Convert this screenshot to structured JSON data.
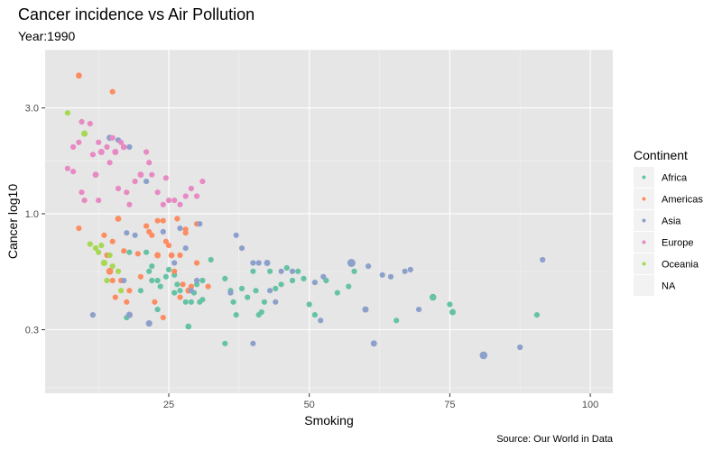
{
  "chart_data": {
    "type": "scatter",
    "title": "Cancer incidence vs Air Pollution",
    "subtitle": "Year:1990",
    "xlabel": "Smoking",
    "ylabel": "Cancer log10",
    "caption": "Source: Our World in Data",
    "x_scale": "linear",
    "y_scale": "log10",
    "xlim": [
      3,
      104
    ],
    "ylim": [
      0.155,
      5.5
    ],
    "x_ticks": [
      25,
      50,
      75,
      100
    ],
    "x_tick_labels": [
      "25",
      "50",
      "75",
      "100"
    ],
    "y_ticks": [
      0.3,
      1.0,
      3.0
    ],
    "y_tick_labels": [
      "0.3",
      "1.0",
      "3.0"
    ],
    "grid": true,
    "legend_title": "Continent",
    "legend_position": "right",
    "size_encoded": true,
    "series": [
      {
        "name": "Africa",
        "color": "#66c2a5",
        "points": [
          [
            18,
            0.67,
            1
          ],
          [
            21,
            0.67,
            1
          ],
          [
            22,
            0.5,
            1
          ],
          [
            23,
            0.5,
            1
          ],
          [
            23.5,
            0.47,
            1
          ],
          [
            24.5,
            0.52,
            1
          ],
          [
            25,
            0.56,
            1
          ],
          [
            26,
            0.53,
            1
          ],
          [
            26.5,
            0.48,
            1
          ],
          [
            27,
            0.45,
            1
          ],
          [
            28,
            0.4,
            1
          ],
          [
            29,
            0.4,
            1
          ],
          [
            30,
            0.48,
            1
          ],
          [
            30.5,
            0.4,
            1
          ],
          [
            31,
            0.5,
            1
          ],
          [
            32.5,
            0.62,
            1
          ],
          [
            35,
            0.51,
            1
          ],
          [
            36,
            0.45,
            1
          ],
          [
            36.5,
            0.4,
            1
          ],
          [
            37,
            0.35,
            1
          ],
          [
            38,
            0.46,
            1
          ],
          [
            39,
            0.42,
            1
          ],
          [
            40,
            0.55,
            1
          ],
          [
            40.5,
            0.45,
            1
          ],
          [
            41,
            0.35,
            1
          ],
          [
            41.5,
            0.36,
            1
          ],
          [
            42,
            0.4,
            1
          ],
          [
            43,
            0.55,
            1
          ],
          [
            44,
            0.46,
            1
          ],
          [
            45,
            0.48,
            1
          ],
          [
            46,
            0.57,
            1
          ],
          [
            47,
            0.5,
            1
          ],
          [
            48,
            0.55,
            1
          ],
          [
            49,
            0.51,
            1
          ],
          [
            50,
            0.39,
            1
          ],
          [
            51,
            0.35,
            1
          ],
          [
            53,
            0.5,
            1
          ],
          [
            55,
            0.44,
            1
          ],
          [
            57,
            0.47,
            1
          ],
          [
            58,
            0.55,
            1
          ],
          [
            65.5,
            0.33,
            1
          ],
          [
            72,
            0.42,
            1.5
          ],
          [
            75,
            0.39,
            1
          ],
          [
            75.5,
            0.36,
            1.3
          ],
          [
            90.5,
            0.35,
            1
          ],
          [
            17.5,
            0.34,
            1
          ],
          [
            20,
            0.45,
            1
          ],
          [
            23,
            0.37,
            1
          ],
          [
            28.5,
            0.31,
            1.2
          ],
          [
            35,
            0.26,
            1
          ],
          [
            22,
            0.58,
            1
          ],
          [
            21.5,
            0.55,
            1
          ],
          [
            26,
            0.44,
            1
          ],
          [
            29.5,
            0.44,
            1
          ],
          [
            31,
            0.41,
            1
          ]
        ]
      },
      {
        "name": "Americas",
        "color": "#fc8d62",
        "points": [
          [
            9,
            4.2,
            1.2
          ],
          [
            15,
            3.55,
            1
          ],
          [
            9,
            0.86,
            1
          ],
          [
            16,
            0.95,
            1.2
          ],
          [
            17,
            0.68,
            1
          ],
          [
            13.5,
            0.8,
            1
          ],
          [
            14,
            0.65,
            1
          ],
          [
            15,
            0.75,
            1
          ],
          [
            14.5,
            0.55,
            1.6
          ],
          [
            15,
            0.5,
            1
          ],
          [
            15.5,
            0.42,
            1
          ],
          [
            16.5,
            0.5,
            1
          ],
          [
            17.5,
            0.4,
            1
          ],
          [
            18,
            0.45,
            1
          ],
          [
            19.5,
            0.66,
            1
          ],
          [
            20,
            0.52,
            1
          ],
          [
            21,
            0.88,
            1
          ],
          [
            22,
            0.8,
            1
          ],
          [
            23,
            0.93,
            1
          ],
          [
            24,
            0.93,
            1
          ],
          [
            24.5,
            0.75,
            1
          ],
          [
            25,
            0.72,
            1
          ],
          [
            25.5,
            0.65,
            1.2
          ],
          [
            26,
            0.55,
            1
          ],
          [
            27,
            0.65,
            1
          ],
          [
            27.5,
            0.48,
            1
          ],
          [
            28,
            0.82,
            1
          ],
          [
            28.5,
            0.45,
            1.2
          ],
          [
            29,
            0.47,
            1
          ],
          [
            30,
            0.6,
            1
          ],
          [
            32,
            0.47,
            1
          ],
          [
            27,
            0.42,
            1
          ],
          [
            21.5,
            0.83,
            1
          ],
          [
            22.5,
            0.4,
            1
          ],
          [
            24,
            0.34,
            1
          ],
          [
            28,
            0.85,
            1
          ],
          [
            30,
            0.9,
            1
          ],
          [
            23,
            0.65,
            1.3
          ],
          [
            26.5,
            0.95,
            1
          ]
        ]
      },
      {
        "name": "Asia",
        "color": "#8da0cb",
        "points": [
          [
            14.5,
            2.2,
            1.3
          ],
          [
            16,
            2.15,
            1
          ],
          [
            18,
            2.0,
            1
          ],
          [
            21,
            1.4,
            1
          ],
          [
            19,
            0.8,
            1
          ],
          [
            17.5,
            0.82,
            1
          ],
          [
            17,
            0.5,
            1
          ],
          [
            18,
            0.35,
            1.4
          ],
          [
            11.5,
            0.35,
            1
          ],
          [
            21.5,
            0.32,
            1.4
          ],
          [
            24,
            0.83,
            1
          ],
          [
            26,
            0.6,
            1
          ],
          [
            27,
            0.86,
            1
          ],
          [
            28,
            0.7,
            1
          ],
          [
            30.5,
            0.9,
            1
          ],
          [
            29,
            0.45,
            1
          ],
          [
            30,
            0.5,
            1
          ],
          [
            37,
            0.8,
            1
          ],
          [
            38,
            0.7,
            1
          ],
          [
            40,
            0.6,
            1
          ],
          [
            41,
            0.6,
            1
          ],
          [
            42.5,
            0.6,
            1.3
          ],
          [
            43,
            0.45,
            1
          ],
          [
            44,
            0.4,
            1
          ],
          [
            45,
            0.55,
            1
          ],
          [
            47,
            0.55,
            1
          ],
          [
            52,
            0.33,
            1
          ],
          [
            52.5,
            0.52,
            1
          ],
          [
            57.5,
            0.6,
            2.2
          ],
          [
            60,
            0.37,
            1.3
          ],
          [
            61.5,
            0.26,
            1.3
          ],
          [
            63,
            0.53,
            1
          ],
          [
            64.5,
            0.52,
            1
          ],
          [
            67,
            0.55,
            1
          ],
          [
            68,
            0.56,
            1
          ],
          [
            69.5,
            0.37,
            1
          ],
          [
            81,
            0.23,
            2
          ],
          [
            87.5,
            0.25,
            1
          ],
          [
            91.5,
            0.62,
            1
          ],
          [
            40,
            0.26,
            1
          ],
          [
            60.5,
            0.58,
            1
          ],
          [
            51,
            0.49,
            1
          ],
          [
            36,
            0.44,
            1
          ]
        ]
      },
      {
        "name": "Europe",
        "color": "#e78ac3",
        "points": [
          [
            7,
            1.6,
            1
          ],
          [
            8,
            2.0,
            1
          ],
          [
            9,
            2.1,
            1
          ],
          [
            9.5,
            2.6,
            1
          ],
          [
            9.5,
            1.25,
            1
          ],
          [
            10,
            1.15,
            1
          ],
          [
            11,
            2.55,
            1
          ],
          [
            11.5,
            1.85,
            1
          ],
          [
            12,
            1.5,
            1.2
          ],
          [
            12.5,
            1.15,
            1
          ],
          [
            13,
            1.9,
            1.3
          ],
          [
            14,
            2.0,
            1
          ],
          [
            15,
            2.2,
            1
          ],
          [
            15.5,
            1.9,
            1.3
          ],
          [
            16,
            1.3,
            1
          ],
          [
            16.5,
            2.1,
            1
          ],
          [
            17,
            2.0,
            1.2
          ],
          [
            17.5,
            1.25,
            1
          ],
          [
            18,
            1.1,
            1
          ],
          [
            19,
            1.4,
            1
          ],
          [
            20,
            1.5,
            1.2
          ],
          [
            21,
            1.9,
            1
          ],
          [
            21.5,
            1.7,
            1
          ],
          [
            22,
            1.5,
            1
          ],
          [
            23,
            1.25,
            1
          ],
          [
            24,
            1.1,
            1
          ],
          [
            24.5,
            1.45,
            1
          ],
          [
            25,
            1.15,
            1
          ],
          [
            26,
            1.15,
            1
          ],
          [
            27,
            1.1,
            1
          ],
          [
            28,
            1.2,
            1
          ],
          [
            29,
            1.3,
            1
          ],
          [
            30,
            1.2,
            1
          ],
          [
            31,
            1.4,
            1
          ],
          [
            8,
            1.55,
            1
          ],
          [
            12.5,
            2.1,
            1
          ],
          [
            14.5,
            1.7,
            1
          ]
        ]
      },
      {
        "name": "Oceania",
        "color": "#a6d854",
        "points": [
          [
            7,
            2.85,
            1
          ],
          [
            10,
            2.3,
            1.3
          ],
          [
            11,
            0.73,
            1
          ],
          [
            12,
            0.7,
            1
          ],
          [
            12.5,
            0.67,
            1
          ],
          [
            13,
            0.72,
            1
          ],
          [
            13.5,
            0.6,
            1.4
          ],
          [
            14,
            0.5,
            1
          ],
          [
            15,
            0.58,
            1
          ],
          [
            16,
            0.55,
            1
          ],
          [
            14.5,
            0.65,
            1
          ],
          [
            16.5,
            0.45,
            1
          ]
        ]
      },
      {
        "name": "NA",
        "color": "#b3b3b3",
        "points": []
      }
    ]
  }
}
